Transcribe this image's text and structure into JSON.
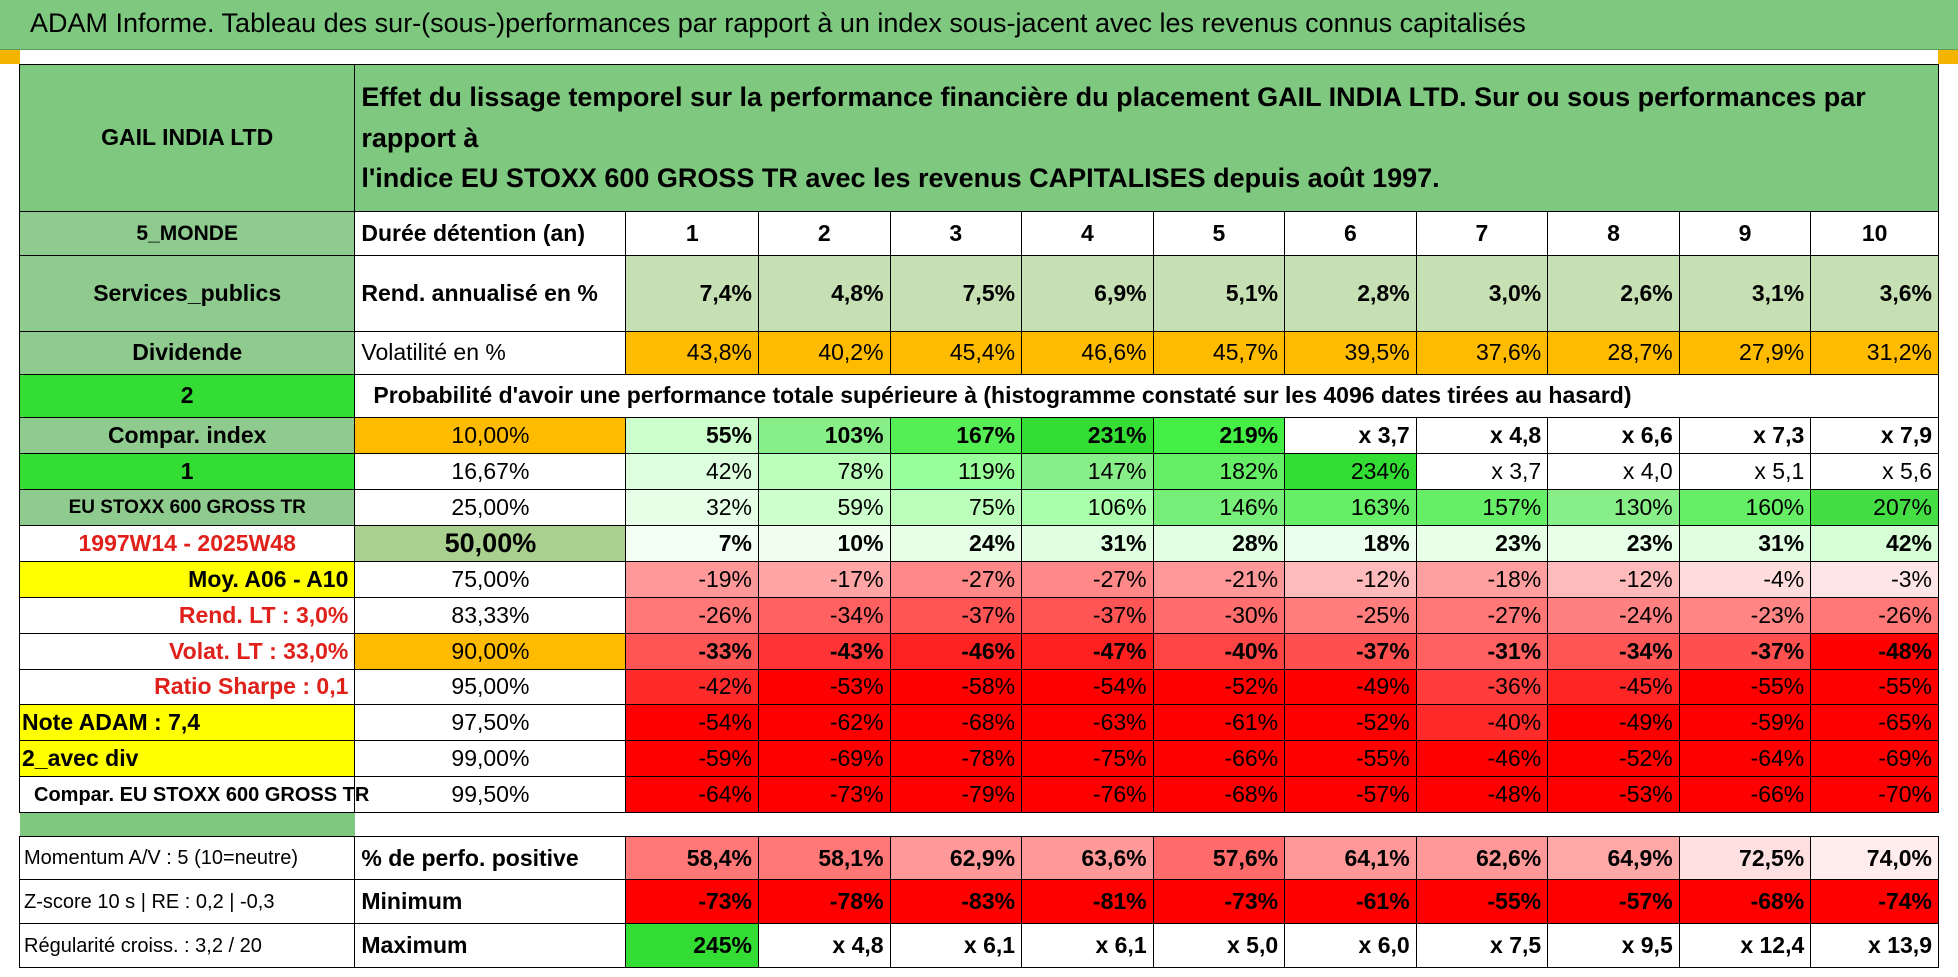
{
  "header": {
    "title": "ADAM Informe. Tableau des sur-(sous-)performances par rapport à un index sous-jacent avec les revenus connus capitalisés"
  },
  "colors": {
    "header_green": "#7ec87f",
    "label_green": "#8fcb8f",
    "bright_green": "#33dd33",
    "yellow": "#ffff00",
    "orange": "#ffbb00",
    "red": "#ff0000",
    "label_red_text": "#e0201a"
  },
  "description": {
    "line1": "Effet du lissage temporel sur la performance financière du placement GAIL INDIA LTD. Sur ou sous performances par rapport à",
    "line2": "l'indice EU STOXX 600 GROSS TR avec les revenus CAPITALISES depuis août 1997."
  },
  "left": {
    "company": "GAIL INDIA LTD",
    "region": "5_MONDE",
    "sector": "Services_publics",
    "dividend": "Dividende",
    "index_code": "2",
    "compar_index": "Compar. index",
    "index_code2": "1",
    "index_name": "EU STOXX 600 GROSS TR",
    "period": "1997W14 - 2025W48",
    "moy": "Moy. A06 - A10",
    "rend_lt": "Rend. LT :    3,0%",
    "volat_lt": "Volat. LT :    33,0%",
    "sharpe": "Ratio Sharpe :     0,1",
    "note": "Note ADAM : 7,4",
    "avec_div": "2_avec div",
    "compar_name": "Compar. EU STOXX 600 GROSS TR",
    "momentum": "Momentum A/V : 5 (10=neutre)",
    "zscore": "Z-score 10 s | RE : 0,2 | -0,3",
    "regularite": "Régularité croiss. : 3,2 / 20"
  },
  "rows": {
    "duree": {
      "label": "Durée détention (an)",
      "values": [
        "1",
        "2",
        "3",
        "4",
        "5",
        "6",
        "7",
        "8",
        "9",
        "10"
      ]
    },
    "rend": {
      "label": "Rend. annualisé en %",
      "values": [
        "7,4%",
        "4,8%",
        "7,5%",
        "6,9%",
        "5,1%",
        "2,8%",
        "3,0%",
        "2,6%",
        "3,1%",
        "3,6%"
      ]
    },
    "volat": {
      "label": "Volatilité en %",
      "values": [
        "43,8%",
        "40,2%",
        "45,4%",
        "46,6%",
        "45,7%",
        "39,5%",
        "37,6%",
        "28,7%",
        "27,9%",
        "31,2%"
      ]
    },
    "prob_title": "Probabilité d'avoir une performance totale supérieure à (histogramme constaté sur les 4096 dates tirées au hasard)",
    "positive": {
      "label": "% de perfo. positive",
      "values": [
        "58,4%",
        "58,1%",
        "62,9%",
        "63,6%",
        "57,6%",
        "64,1%",
        "62,6%",
        "64,9%",
        "72,5%",
        "74,0%"
      ]
    },
    "minimum": {
      "label": "Minimum",
      "values": [
        "-73%",
        "-78%",
        "-83%",
        "-81%",
        "-73%",
        "-61%",
        "-55%",
        "-57%",
        "-68%",
        "-74%"
      ]
    },
    "maximum": {
      "label": "Maximum",
      "values": [
        "245%",
        "x 4,8",
        "x 6,1",
        "x 6,1",
        "x 5,0",
        "x 6,0",
        "x 7,5",
        "x 9,5",
        "x 12,4",
        "x 13,9"
      ]
    }
  },
  "prob_rows": [
    {
      "pct": "10,00%",
      "values": [
        "55%",
        "103%",
        "167%",
        "231%",
        "219%",
        "x 3,7",
        "x 4,8",
        "x 6,6",
        "x 7,3",
        "x 7,9"
      ]
    },
    {
      "pct": "16,67%",
      "values": [
        "42%",
        "78%",
        "119%",
        "147%",
        "182%",
        "234%",
        "x 3,7",
        "x 4,0",
        "x 5,1",
        "x 5,6"
      ]
    },
    {
      "pct": "25,00%",
      "values": [
        "32%",
        "59%",
        "75%",
        "106%",
        "146%",
        "163%",
        "157%",
        "130%",
        "160%",
        "207%"
      ]
    },
    {
      "pct": "50,00%",
      "values": [
        "7%",
        "10%",
        "24%",
        "31%",
        "28%",
        "18%",
        "23%",
        "23%",
        "31%",
        "42%"
      ]
    },
    {
      "pct": "75,00%",
      "values": [
        "-19%",
        "-17%",
        "-27%",
        "-27%",
        "-21%",
        "-12%",
        "-18%",
        "-12%",
        "-4%",
        "-3%"
      ]
    },
    {
      "pct": "83,33%",
      "values": [
        "-26%",
        "-34%",
        "-37%",
        "-37%",
        "-30%",
        "-25%",
        "-27%",
        "-24%",
        "-23%",
        "-26%"
      ]
    },
    {
      "pct": "90,00%",
      "values": [
        "-33%",
        "-43%",
        "-46%",
        "-47%",
        "-40%",
        "-37%",
        "-31%",
        "-34%",
        "-37%",
        "-48%"
      ]
    },
    {
      "pct": "95,00%",
      "values": [
        "-42%",
        "-53%",
        "-58%",
        "-54%",
        "-52%",
        "-49%",
        "-36%",
        "-45%",
        "-55%",
        "-55%"
      ]
    },
    {
      "pct": "97,50%",
      "values": [
        "-54%",
        "-62%",
        "-68%",
        "-63%",
        "-61%",
        "-52%",
        "-40%",
        "-49%",
        "-59%",
        "-65%"
      ]
    },
    {
      "pct": "99,00%",
      "values": [
        "-59%",
        "-69%",
        "-78%",
        "-75%",
        "-66%",
        "-55%",
        "-46%",
        "-52%",
        "-64%",
        "-69%"
      ]
    },
    {
      "pct": "99,50%",
      "values": [
        "-64%",
        "-73%",
        "-79%",
        "-76%",
        "-68%",
        "-57%",
        "-48%",
        "-53%",
        "-66%",
        "-70%"
      ]
    }
  ],
  "cell_colors": {
    "rend": [
      "#c6e0b4",
      "#c6e0b4",
      "#c6e0b4",
      "#c6e0b4",
      "#c6e0b4",
      "#c6e0b4",
      "#c6e0b4",
      "#c6e0b4",
      "#c6e0b4",
      "#c6e0b4"
    ],
    "volat": [
      "#ffbb00",
      "#ffbb00",
      "#ffbb00",
      "#ffbb00",
      "#ffbb00",
      "#ffbb00",
      "#ffbb00",
      "#ffbb00",
      "#ffbb00",
      "#ffbb00"
    ],
    "prob": [
      [
        "#ccffcc",
        "#88ee88",
        "#55ee55",
        "#33dd33",
        "#44ee44",
        "#ffffff",
        "#ffffff",
        "#ffffff",
        "#ffffff",
        "#ffffff"
      ],
      [
        "#ddffdd",
        "#bbffbb",
        "#99ff99",
        "#88ee88",
        "#66ee66",
        "#33dd33",
        "#ffffff",
        "#ffffff",
        "#ffffff",
        "#ffffff"
      ],
      [
        "#e6ffe6",
        "#ccffcc",
        "#bbffbb",
        "#aaffaa",
        "#77ee77",
        "#66ee66",
        "#66ee66",
        "#88ee88",
        "#66ee66",
        "#44dd44"
      ],
      [
        "#f4fff4",
        "#f0fff0",
        "#e6ffe6",
        "#e0ffe0",
        "#e3ffe3",
        "#ecffec",
        "#e8ffe8",
        "#e8ffe8",
        "#e0ffe0",
        "#d6ffd6"
      ],
      [
        "#ff9999",
        "#ffa5a5",
        "#ff8888",
        "#ff8888",
        "#ff9999",
        "#ffbbbb",
        "#ff9f9f",
        "#ffbbbb",
        "#ffdddd",
        "#ffe6e6"
      ],
      [
        "#ff7777",
        "#ff6060",
        "#ff5555",
        "#ff5555",
        "#ff6d6d",
        "#ff7d7d",
        "#ff7777",
        "#ff8080",
        "#ff8585",
        "#ff7777"
      ],
      [
        "#ff5555",
        "#ff3333",
        "#ff2222",
        "#ff1f1f",
        "#ff4444",
        "#ff5050",
        "#ff6060",
        "#ff5555",
        "#ff5050",
        "#ff0000"
      ],
      [
        "#ff2a2a",
        "#ff0000",
        "#ff0000",
        "#ff0000",
        "#ff0000",
        "#ff0000",
        "#ff3d3d",
        "#ff2525",
        "#ff0000",
        "#ff0000"
      ],
      [
        "#ff0000",
        "#ff0000",
        "#ff0000",
        "#ff0000",
        "#ff0000",
        "#ff0000",
        "#ff2a2a",
        "#ff0000",
        "#ff0000",
        "#ff0000"
      ],
      [
        "#ff0000",
        "#ff0000",
        "#ff0000",
        "#ff0000",
        "#ff0000",
        "#ff0000",
        "#ff0000",
        "#ff0000",
        "#ff0000",
        "#ff0000"
      ],
      [
        "#ff0000",
        "#ff0000",
        "#ff0000",
        "#ff0000",
        "#ff0000",
        "#ff0000",
        "#ff0000",
        "#ff0000",
        "#ff0000",
        "#ff0000"
      ]
    ],
    "positive": [
      "#ff7777",
      "#ff7777",
      "#ff9999",
      "#ff9999",
      "#ff6a6a",
      "#ff9999",
      "#ff9999",
      "#ffa8a8",
      "#ffe0e0",
      "#ffecec"
    ],
    "minimum": [
      "#ff0000",
      "#ff0000",
      "#ff0000",
      "#ff0000",
      "#ff0000",
      "#ff0000",
      "#ff0000",
      "#ff0000",
      "#ff0000",
      "#ff0000"
    ],
    "maximum": [
      "#33dd33",
      "#ffffff",
      "#ffffff",
      "#ffffff",
      "#ffffff",
      "#ffffff",
      "#ffffff",
      "#ffffff",
      "#ffffff",
      "#ffffff"
    ]
  }
}
